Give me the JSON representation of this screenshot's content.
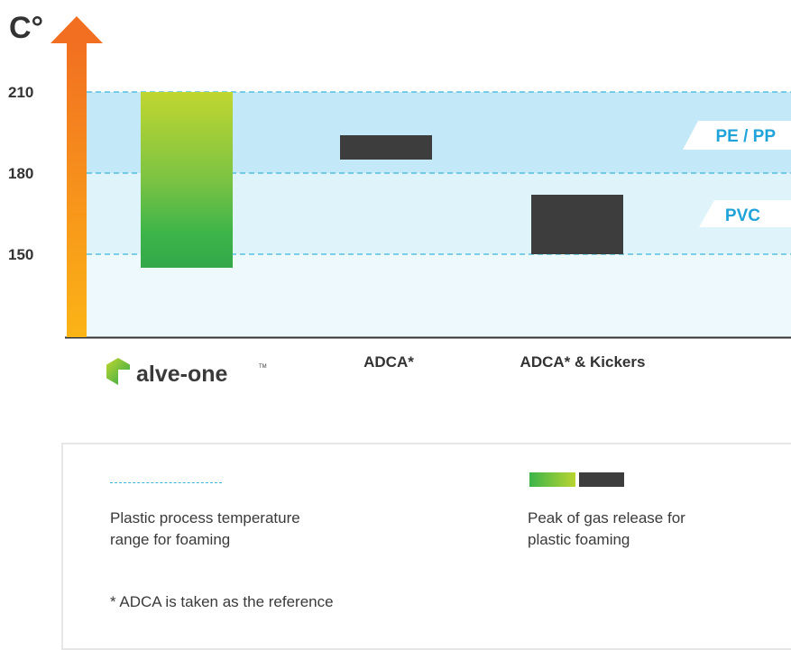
{
  "chart_data": {
    "type": "bar",
    "subtype": "floating-range",
    "y_unit": "C°",
    "y_ticks": [
      150,
      180,
      210
    ],
    "ylim": [
      120,
      230
    ],
    "grid": false,
    "categories": [
      "alve-one",
      "ADCA*",
      "ADCA* & Kickers"
    ],
    "bars": [
      {
        "category": "alve-one",
        "low": 145,
        "high": 210,
        "color": "green-gradient"
      },
      {
        "category": "ADCA*",
        "low": 185,
        "high": 194,
        "color": "#3d3d3d"
      },
      {
        "category": "ADCA* & Kickers",
        "low": 150,
        "high": 172,
        "color": "#3d3d3d"
      }
    ],
    "zones": [
      {
        "label": "PE / PP",
        "low": 180,
        "high": 210
      },
      {
        "label": "PVC",
        "low": 150,
        "high": 180
      }
    ]
  },
  "logo_text": "alve-one",
  "colors": {
    "zone_top": "#c3e8f7",
    "zone_bottom": "#dff3fb",
    "zone_base": "#eef9fd",
    "accent_blue": "#1fa3d8",
    "dash": "#3cb4d8",
    "dark_bar": "#3d3d3d",
    "green_low": "#39b54a",
    "green_high": "#bed630",
    "arrow_top": "#f26f21",
    "arrow_bottom": "#fbb416"
  },
  "legend": {
    "range_text": "Plastic process temperature\nrange for foaming",
    "peak_text": "Peak of gas release for\nplastic foaming",
    "footnote": "* ADCA is taken as the reference"
  }
}
